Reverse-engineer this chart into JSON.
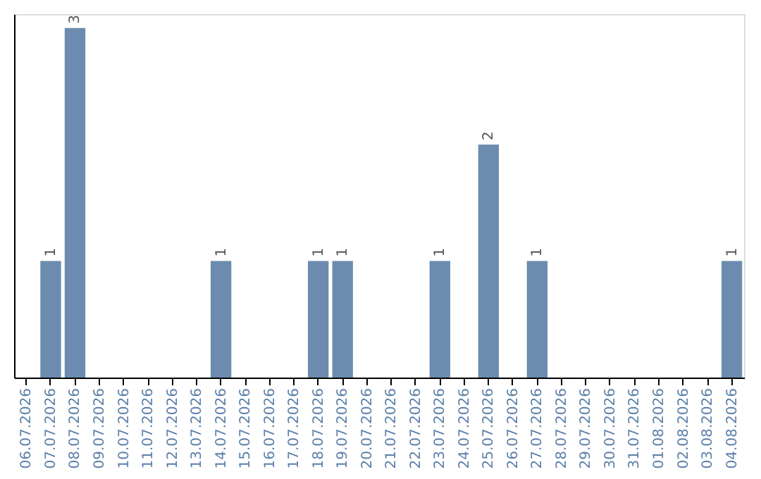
{
  "chart_data": {
    "type": "bar",
    "categories": [
      "06.07.2026",
      "07.07.2026",
      "08.07.2026",
      "09.07.2026",
      "10.07.2026",
      "11.07.2026",
      "12.07.2026",
      "13.07.2026",
      "14.07.2026",
      "15.07.2026",
      "16.07.2026",
      "17.07.2026",
      "18.07.2026",
      "19.07.2026",
      "20.07.2026",
      "21.07.2026",
      "22.07.2026",
      "23.07.2026",
      "24.07.2026",
      "25.07.2026",
      "26.07.2026",
      "27.07.2026",
      "28.07.2026",
      "29.07.2026",
      "30.07.2026",
      "31.07.2026",
      "01.08.2026",
      "02.08.2026",
      "03.08.2026",
      "04.08.2026"
    ],
    "values": [
      0,
      1,
      3,
      0,
      0,
      0,
      0,
      0,
      1,
      0,
      0,
      0,
      1,
      1,
      0,
      0,
      0,
      1,
      0,
      2,
      0,
      1,
      0,
      0,
      0,
      0,
      0,
      0,
      0,
      1
    ],
    "value_labels": [
      null,
      "1",
      "3",
      null,
      null,
      null,
      null,
      null,
      "1",
      null,
      null,
      null,
      "1",
      "1",
      null,
      null,
      null,
      "1",
      null,
      "2",
      null,
      "1",
      null,
      null,
      null,
      null,
      null,
      null,
      null,
      "1"
    ],
    "color": "#6b8cae",
    "grid": false,
    "tick_labels": "x"
  }
}
